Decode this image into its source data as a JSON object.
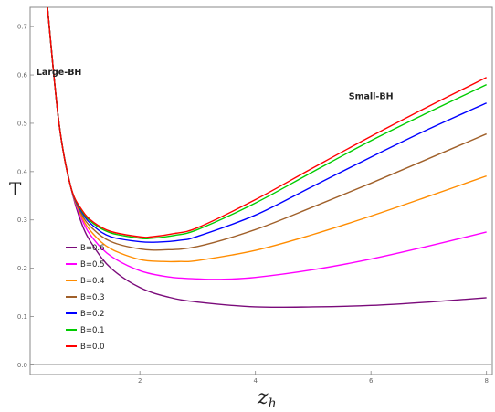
{
  "chart_data": {
    "type": "line",
    "xlabel": "z",
    "xlabel_sub": "h",
    "ylabel": "T",
    "xlim": [
      0.1,
      8.1
    ],
    "ylim": [
      -0.02,
      0.74
    ],
    "x_ticks": [
      2,
      4,
      6,
      8
    ],
    "x_tick_labels": [
      "2",
      "4",
      "6",
      "8"
    ],
    "y_ticks": [
      0.0,
      0.1,
      0.2,
      0.3,
      0.4,
      0.5,
      0.6,
      0.7
    ],
    "y_tick_labels": [
      "0.0",
      "0.1",
      "0.2",
      "0.3",
      "0.4",
      "0.5",
      "0.6",
      "0.7"
    ],
    "grid": false,
    "legend_position": "bottom-left",
    "annotations": [
      {
        "text": "Large-BH",
        "x": 0.6,
        "y": 0.6
      },
      {
        "text": "Small-BH",
        "x": 6.0,
        "y": 0.55
      }
    ],
    "series": [
      {
        "name": "B=0.6",
        "color": "#7a0a7a",
        "x": [
          0.4,
          0.6,
          0.8,
          1.0,
          1.2,
          1.5,
          2.0,
          2.5,
          3.0,
          4.0,
          5.0,
          6.0,
          7.0,
          8.0
        ],
        "y": [
          0.74,
          0.5,
          0.37,
          0.29,
          0.245,
          0.2,
          0.16,
          0.14,
          0.13,
          0.12,
          0.12,
          0.123,
          0.13,
          0.139
        ]
      },
      {
        "name": "B=0.5",
        "color": "#ff00ff",
        "x": [
          0.4,
          0.6,
          0.8,
          1.0,
          1.2,
          1.5,
          2.0,
          2.5,
          3.0,
          3.4,
          4.0,
          5.0,
          6.0,
          7.0,
          8.0
        ],
        "y": [
          0.74,
          0.5,
          0.37,
          0.3,
          0.26,
          0.225,
          0.195,
          0.182,
          0.178,
          0.177,
          0.181,
          0.197,
          0.219,
          0.246,
          0.275
        ]
      },
      {
        "name": "B=0.4",
        "color": "#ff8c00",
        "x": [
          0.4,
          0.6,
          0.8,
          1.0,
          1.2,
          1.5,
          2.0,
          2.4,
          2.7,
          3.0,
          4.0,
          5.0,
          6.0,
          7.0,
          8.0
        ],
        "y": [
          0.74,
          0.5,
          0.37,
          0.305,
          0.27,
          0.24,
          0.218,
          0.214,
          0.214,
          0.216,
          0.237,
          0.27,
          0.308,
          0.349,
          0.391
        ]
      },
      {
        "name": "B=0.3",
        "color": "#a0602a",
        "x": [
          0.4,
          0.6,
          0.8,
          1.0,
          1.2,
          1.5,
          2.0,
          2.4,
          3.0,
          4.0,
          5.0,
          6.0,
          7.0,
          8.0
        ],
        "y": [
          0.74,
          0.5,
          0.37,
          0.31,
          0.28,
          0.255,
          0.24,
          0.238,
          0.245,
          0.28,
          0.327,
          0.376,
          0.427,
          0.478
        ]
      },
      {
        "name": "B=0.2",
        "color": "#0000ff",
        "x": [
          0.4,
          0.6,
          0.8,
          1.0,
          1.2,
          1.5,
          2.0,
          2.3,
          2.7,
          3.0,
          4.0,
          5.0,
          6.0,
          7.0,
          8.0
        ],
        "y": [
          0.74,
          0.5,
          0.37,
          0.315,
          0.287,
          0.265,
          0.255,
          0.254,
          0.258,
          0.266,
          0.31,
          0.37,
          0.43,
          0.488,
          0.542
        ]
      },
      {
        "name": "B=0.1",
        "color": "#00cc00",
        "x": [
          0.4,
          0.6,
          0.8,
          1.0,
          1.2,
          1.5,
          2.0,
          2.2,
          2.6,
          3.0,
          4.0,
          5.0,
          6.0,
          7.0,
          8.0
        ],
        "y": [
          0.74,
          0.5,
          0.37,
          0.318,
          0.292,
          0.273,
          0.262,
          0.262,
          0.268,
          0.28,
          0.335,
          0.4,
          0.464,
          0.523,
          0.58
        ]
      },
      {
        "name": "B=0.0",
        "color": "#ff0000",
        "x": [
          0.4,
          0.6,
          0.8,
          1.0,
          1.2,
          1.5,
          2.0,
          2.2,
          2.6,
          3.0,
          4.0,
          5.0,
          6.0,
          7.0,
          8.0
        ],
        "y": [
          0.74,
          0.5,
          0.37,
          0.32,
          0.295,
          0.276,
          0.265,
          0.265,
          0.272,
          0.284,
          0.342,
          0.408,
          0.473,
          0.535,
          0.595
        ]
      }
    ]
  }
}
